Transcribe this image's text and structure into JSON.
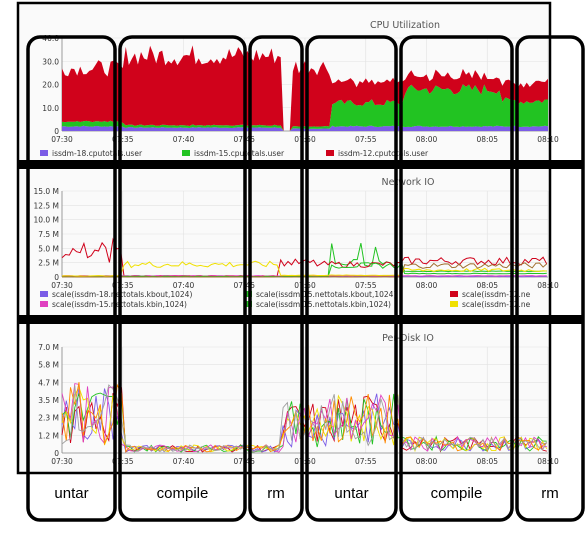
{
  "chart_data": [
    {
      "type": "area",
      "title": "CPU Utilization",
      "x_ticks": [
        "07:30",
        "07:35",
        "07:40",
        "07:45",
        "07:50",
        "07:55",
        "08:00",
        "08:05",
        "08:10"
      ],
      "y_ticks": [
        "0",
        "10.0",
        "20.0",
        "30.0",
        "40.0"
      ],
      "ylim": [
        0,
        40
      ],
      "stacked": true,
      "series": [
        {
          "name": "issdm-18.cputotals.user",
          "color": "#7b5ce6",
          "segments": [
            {
              "from": "07:30",
              "to": "07:35",
              "value": 2
            },
            {
              "from": "07:35",
              "to": "07:48",
              "value": 1.5
            },
            {
              "from": "07:49",
              "to": "07:52",
              "value": 1
            },
            {
              "from": "07:52",
              "to": "08:10",
              "value": 2
            }
          ]
        },
        {
          "name": "issdm-15.cputotals.user",
          "color": "#22c322",
          "segments": [
            {
              "from": "07:30",
              "to": "07:35",
              "value": 2
            },
            {
              "from": "07:35",
              "to": "07:48",
              "value": 1
            },
            {
              "from": "07:49",
              "to": "07:52",
              "value": 1
            },
            {
              "from": "07:52",
              "to": "07:58",
              "value": 10
            },
            {
              "from": "07:58",
              "to": "08:06",
              "value": 16
            },
            {
              "from": "08:06",
              "to": "08:10",
              "value": 11
            }
          ]
        },
        {
          "name": "issdm-12.cputotals.user",
          "color": "#d0021b",
          "segments": [
            {
              "from": "07:30",
              "to": "07:35",
              "value": 23
            },
            {
              "from": "07:35",
              "to": "07:48",
              "value": 30
            },
            {
              "from": "07:49",
              "to": "07:52",
              "value": 26
            },
            {
              "from": "07:52",
              "to": "07:58",
              "value": 9
            },
            {
              "from": "07:58",
              "to": "08:06",
              "value": 6
            },
            {
              "from": "08:06",
              "to": "08:10",
              "value": 8
            }
          ]
        }
      ]
    },
    {
      "type": "line",
      "title": "Network IO",
      "x_ticks": [
        "07:30",
        "07:35",
        "07:40",
        "07:45",
        "07:50",
        "07:55",
        "08:00",
        "08:05",
        "08:10"
      ],
      "y_ticks": [
        "0",
        "2.5 M",
        "5.0 M",
        "7.5 M",
        "10.0 M",
        "12.5 M",
        "15.0 M"
      ],
      "ylim": [
        0,
        15
      ],
      "series": [
        {
          "name": "scale(issdm-18.nettotals.kbout,1024)",
          "color": "#7b5ce6",
          "segments": [
            {
              "from": "07:30",
              "to": "08:10",
              "value": 0.1
            }
          ]
        },
        {
          "name": "scale(issdm-15.nettotals.kbout,1024)",
          "color": "#22c322",
          "segments": [
            {
              "from": "07:30",
              "to": "07:52",
              "value": 0.1
            },
            {
              "from": "07:52",
              "to": "07:58",
              "value": 2.5
            },
            {
              "from": "07:58",
              "to": "08:10",
              "value": 1.0
            }
          ]
        },
        {
          "name": "scale(issdm-12.nettotals.kbout,1024)",
          "color": "#d0021b",
          "segments": [
            {
              "from": "07:30",
              "to": "07:35",
              "value": 4
            },
            {
              "from": "07:35",
              "to": "07:48",
              "value": 0.2
            },
            {
              "from": "07:48",
              "to": "07:51",
              "value": 2.5
            },
            {
              "from": "07:51",
              "to": "07:58",
              "value": 2.2
            },
            {
              "from": "07:58",
              "to": "08:10",
              "value": 2.8
            }
          ]
        },
        {
          "name": "scale(issdm-15.nettotals.kbin,1024)",
          "color": "#e040c0",
          "segments": [
            {
              "from": "07:30",
              "to": "08:10",
              "value": 0.2
            }
          ]
        },
        {
          "name": "scale(issdm-15.nettotals.kbin,1024)",
          "color": "#22c322",
          "segments": [
            {
              "from": "07:30",
              "to": "07:52",
              "value": 0.1
            },
            {
              "from": "07:52",
              "to": "07:58",
              "value": 2.0
            },
            {
              "from": "07:58",
              "to": "08:10",
              "value": 0.6
            }
          ]
        },
        {
          "name": "scale(issdm-12.ne",
          "color": "#f0e000",
          "segments": [
            {
              "from": "07:30",
              "to": "07:35",
              "value": 0.2
            },
            {
              "from": "07:35",
              "to": "07:48",
              "value": 2.2
            },
            {
              "from": "07:48",
              "to": "07:58",
              "value": 0.3
            },
            {
              "from": "07:58",
              "to": "08:10",
              "value": 1.2
            }
          ]
        },
        {
          "name": "",
          "color": "#a07030",
          "segments": [
            {
              "from": "07:30",
              "to": "07:58",
              "value": 0
            },
            {
              "from": "07:58",
              "to": "08:10",
              "value": 2.0
            }
          ]
        }
      ]
    },
    {
      "type": "line",
      "title": "Per-Disk IO",
      "x_ticks": [
        "07:30",
        "07:35",
        "07:40",
        "07:45",
        "07:50",
        "07:55",
        "08:00",
        "08:05",
        "08:10"
      ],
      "y_ticks": [
        "0",
        "1.2 M",
        "2.3 M",
        "3.5 M",
        "4.7 M",
        "5.8 M",
        "7.0 M"
      ],
      "ylim": [
        0,
        7.0
      ],
      "series_colors": [
        "#d0021b",
        "#7b5ce6",
        "#22c322",
        "#f0e000",
        "#e040c0",
        "#ff8c00",
        "#a0a0a0"
      ],
      "segments": [
        {
          "from": "07:30",
          "to": "07:35",
          "level": 2.6
        },
        {
          "from": "07:35",
          "to": "07:48",
          "level": 0.3
        },
        {
          "from": "07:48",
          "to": "07:52",
          "level": 1.9
        },
        {
          "from": "07:52",
          "to": "07:58",
          "level": 2.2
        },
        {
          "from": "07:58",
          "to": "08:10",
          "level": 0.6
        }
      ]
    }
  ],
  "phases": [
    {
      "label": "untar",
      "from": "07:30",
      "to": "07:35"
    },
    {
      "label": "compile",
      "from": "07:35",
      "to": "07:48"
    },
    {
      "label": "rm",
      "from": "07:48",
      "to": "07:52"
    },
    {
      "label": "untar",
      "from": "07:52",
      "to": "07:58"
    },
    {
      "label": "compile",
      "from": "07:58",
      "to": "08:06"
    },
    {
      "label": "rm",
      "from": "08:06",
      "to": "08:10"
    }
  ],
  "legend_labels": {
    "cpu": [
      "issdm-18.cputotals.user",
      "issdm-15.cputotals.user",
      "issdm-12.cputotals.user"
    ],
    "net": [
      "scale(issdm-18.nettotals.kbout,1024)",
      "scale(issdm-15.nettotals.kbout,1024)",
      "scale(issdm-12.ne",
      "scale(issdm-15.nettotals.kbin,1024)",
      "scale(issdm-15.nettotals.kbin,1024)",
      "scale(issdm-12.ne"
    ]
  }
}
